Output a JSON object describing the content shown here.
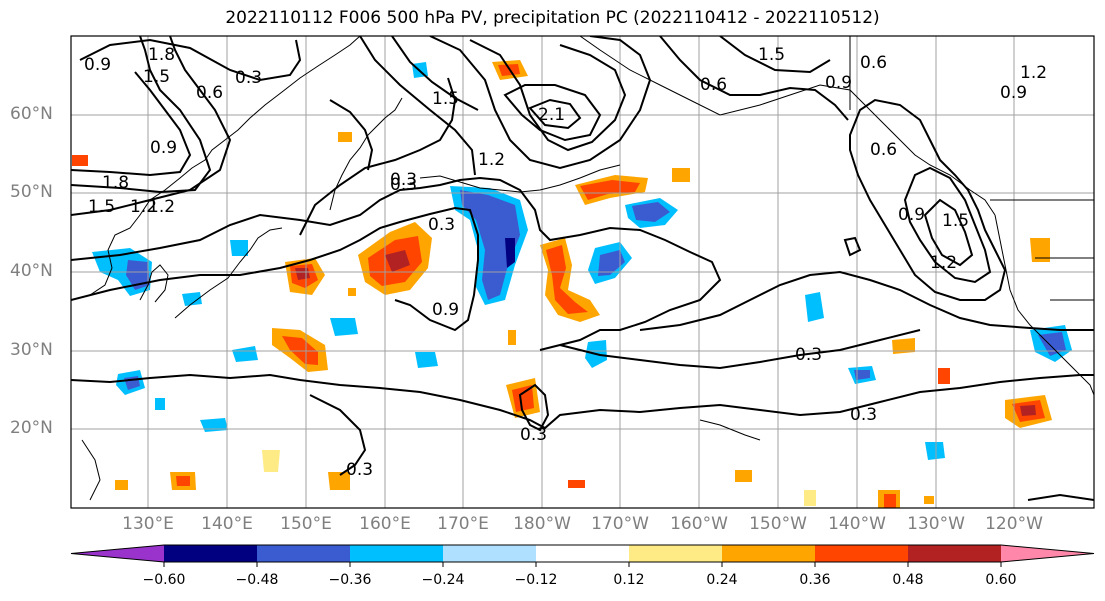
{
  "title": "2022110112 F006 500 hPa PV, precipitation PC (2022110412 - 2022110512)",
  "map": {
    "lat_labels": [
      "60°N",
      "50°N",
      "40°N",
      "30°N",
      "20°N"
    ],
    "lon_labels": [
      "130°E",
      "140°E",
      "150°E",
      "160°E",
      "170°E",
      "180°W",
      "170°W",
      "160°W",
      "150°W",
      "140°W",
      "130°W",
      "120°W"
    ],
    "contour_labels": [
      "1.8",
      "1.5",
      "0.3",
      "0.6",
      "0.9",
      "1.2",
      "1.5",
      "1.8",
      "2.1",
      "0.3",
      "0.9",
      "0.3",
      "0.3",
      "0.3",
      "0.6",
      "0.9",
      "1.2",
      "1.5",
      "0.6",
      "0.9",
      "0.6",
      "0.9",
      "1.2",
      "1.5",
      "0.3",
      "0.3",
      "0.3",
      "0.9",
      "1.2",
      "1.5",
      "1.2"
    ]
  },
  "colorbar": {
    "colors": [
      "#9933cc",
      "#000080",
      "#3b5bd1",
      "#00bfff",
      "#b0e0ff",
      "#ffffff",
      "#ffeb85",
      "#ffa500",
      "#ff4500",
      "#b22222",
      "#ff88aa"
    ],
    "tick_labels": [
      "−0.60",
      "−0.48",
      "−0.36",
      "−0.24",
      "−0.12",
      "0.12",
      "0.24",
      "0.36",
      "0.48",
      "0.60"
    ]
  }
}
